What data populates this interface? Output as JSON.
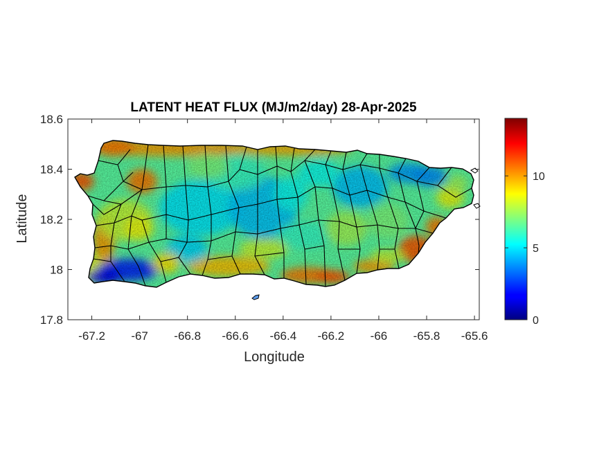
{
  "chart_data": {
    "type": "heatmap",
    "title": "LATENT HEAT FLUX (MJ/m2/day) 28-Apr-2025",
    "xlabel": "Longitude",
    "ylabel": "Latitude",
    "xlim": [
      -67.3,
      -65.58
    ],
    "ylim": [
      17.8,
      18.6
    ],
    "x_ticks": [
      -67.2,
      -67,
      -66.8,
      -66.6,
      -66.4,
      -66.2,
      -66,
      -65.8,
      -65.6
    ],
    "x_tick_labels": [
      "-67.2",
      "-67",
      "-66.8",
      "-66.6",
      "-66.4",
      "-66.2",
      "-66",
      "-65.8",
      "-65.6"
    ],
    "y_ticks": [
      17.8,
      18,
      18.2,
      18.4,
      18.6
    ],
    "y_tick_labels": [
      "17.8",
      "18",
      "18.2",
      "18.4",
      "18.6"
    ],
    "colorbar": {
      "min": 0,
      "max": 14,
      "ticks": [
        0,
        5,
        10
      ],
      "tick_labels": [
        "0",
        "5",
        "10"
      ],
      "colormap": "jet"
    },
    "grid": false,
    "region": "Puerto Rico municipalities",
    "value_pattern": [
      {
        "area": "northwest coast",
        "value": 11
      },
      {
        "area": "north coast",
        "value": 10
      },
      {
        "area": "west coast",
        "value": 10
      },
      {
        "area": "southwest corner",
        "value": 2
      },
      {
        "area": "south coast",
        "value": 9.5
      },
      {
        "area": "southeast coast",
        "value": 11
      },
      {
        "area": "central interior",
        "value": 5
      },
      {
        "area": "east interior",
        "value": 5
      },
      {
        "area": "northeast corner",
        "value": 4
      }
    ]
  },
  "colors": {
    "axis": "#262626",
    "border": "#000000",
    "background": "#ffffff"
  }
}
